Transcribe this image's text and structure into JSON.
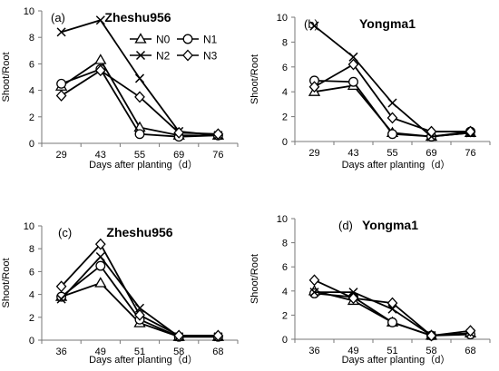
{
  "legend": {
    "items": [
      {
        "series": "N0",
        "marker": "triangle"
      },
      {
        "series": "N1",
        "marker": "circle"
      },
      {
        "series": "N2",
        "marker": "cross"
      },
      {
        "series": "N3",
        "marker": "diamond"
      }
    ],
    "placement": "upper-right of panel (a)"
  },
  "chart_data": [
    {
      "type": "line",
      "panel_label": "(a)",
      "title": "Zheshu956",
      "xlabel": "Days after planting（d）",
      "ylabel": "Shoot/Root",
      "categories": [
        "29",
        "43",
        "55",
        "69",
        "76"
      ],
      "yticks": [
        "0",
        "2",
        "4",
        "6",
        "8",
        "10"
      ],
      "ylim": [
        0,
        10
      ],
      "grid": false,
      "series": [
        {
          "name": "N0",
          "marker": "triangle",
          "values": [
            4.3,
            6.3,
            1.2,
            0.6,
            0.6
          ]
        },
        {
          "name": "N1",
          "marker": "circle",
          "values": [
            4.5,
            5.6,
            0.7,
            0.5,
            0.6
          ]
        },
        {
          "name": "N2",
          "marker": "cross",
          "values": [
            8.4,
            9.3,
            4.9,
            0.9,
            0.6
          ]
        },
        {
          "name": "N3",
          "marker": "diamond",
          "values": [
            3.6,
            5.5,
            3.5,
            0.8,
            0.7
          ]
        }
      ]
    },
    {
      "type": "line",
      "panel_label": "(b)",
      "title": "Yongma1",
      "xlabel": "Days after planting（d）",
      "ylabel": "Shoot/Root",
      "categories": [
        "29",
        "43",
        "55",
        "69",
        "76"
      ],
      "yticks": [
        "0",
        "2",
        "4",
        "6",
        "8",
        "10"
      ],
      "ylim": [
        0,
        10
      ],
      "grid": false,
      "series": [
        {
          "name": "N0",
          "marker": "triangle",
          "values": [
            4.0,
            4.5,
            0.7,
            0.4,
            0.7
          ]
        },
        {
          "name": "N1",
          "marker": "circle",
          "values": [
            4.9,
            4.8,
            0.6,
            0.4,
            0.8
          ]
        },
        {
          "name": "N2",
          "marker": "cross",
          "values": [
            9.3,
            6.8,
            3.1,
            0.4,
            0.7
          ]
        },
        {
          "name": "N3",
          "marker": "diamond",
          "values": [
            4.4,
            6.2,
            1.9,
            0.8,
            0.8
          ]
        }
      ]
    },
    {
      "type": "line",
      "panel_label": "(c)",
      "title": "Zheshu956",
      "xlabel": "Days after planting（d）",
      "ylabel": "Shoot/Root",
      "categories": [
        "36",
        "49",
        "51",
        "58",
        "68"
      ],
      "yticks": [
        "0",
        "2",
        "4",
        "6",
        "8",
        "10"
      ],
      "ylim": [
        0,
        10
      ],
      "grid": false,
      "series": [
        {
          "name": "N0",
          "marker": "triangle",
          "values": [
            3.8,
            5.0,
            1.5,
            0.3,
            0.3
          ]
        },
        {
          "name": "N1",
          "marker": "circle",
          "values": [
            3.8,
            6.5,
            1.8,
            0.3,
            0.3
          ]
        },
        {
          "name": "N2",
          "marker": "cross",
          "values": [
            3.6,
            7.3,
            2.8,
            0.3,
            0.3
          ]
        },
        {
          "name": "N3",
          "marker": "diamond",
          "values": [
            4.7,
            8.4,
            2.2,
            0.4,
            0.4
          ]
        }
      ]
    },
    {
      "type": "line",
      "panel_label": "(d)",
      "title": "Yongma1",
      "xlabel": "Days after planting（d）",
      "ylabel": "Shoot/Root",
      "categories": [
        "36",
        "49",
        "51",
        "58",
        "68"
      ],
      "yticks": [
        "0",
        "2",
        "4",
        "6",
        "8",
        "10"
      ],
      "ylim": [
        0,
        10
      ],
      "grid": false,
      "series": [
        {
          "name": "N0",
          "marker": "triangle",
          "values": [
            4.0,
            3.2,
            1.4,
            0.3,
            0.5
          ]
        },
        {
          "name": "N1",
          "marker": "circle",
          "values": [
            3.8,
            3.5,
            1.4,
            0.3,
            0.4
          ]
        },
        {
          "name": "N2",
          "marker": "cross",
          "values": [
            3.9,
            3.9,
            2.5,
            0.3,
            0.5
          ]
        },
        {
          "name": "N3",
          "marker": "diamond",
          "values": [
            4.9,
            3.4,
            3.0,
            0.3,
            0.7
          ]
        }
      ]
    }
  ]
}
